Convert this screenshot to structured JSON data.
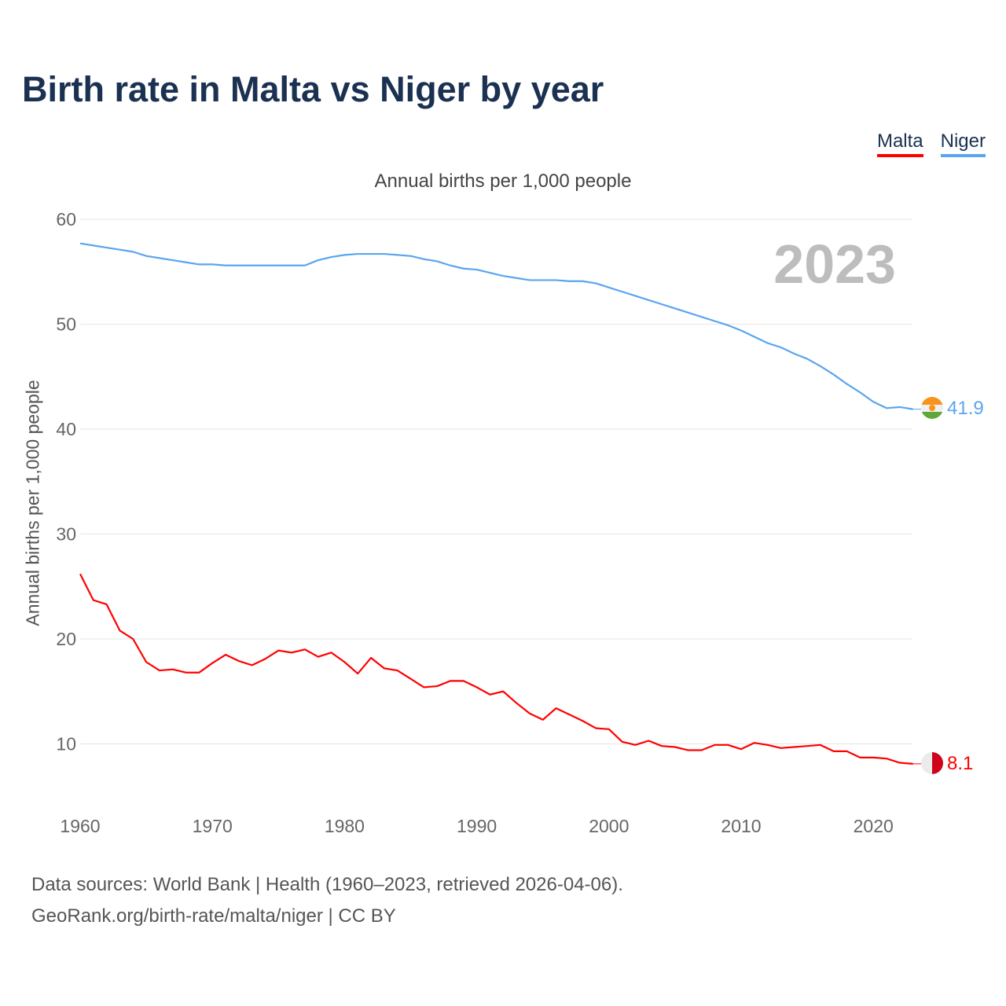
{
  "title": "Birth rate in Malta vs Niger by year",
  "legend": [
    {
      "label": "Malta",
      "color": "#ff0000"
    },
    {
      "label": "Niger",
      "color": "#5aa5ef"
    }
  ],
  "subtitle": "Annual births per 1,000 people",
  "year_label": "2023",
  "source_line1": "Data sources: World Bank | Health (1960–2023, retrieved 2026-04-06).",
  "source_line2": "GeoRank.org/birth-rate/malta/niger | CC BY",
  "chart_data": {
    "type": "line",
    "title": "Birth rate in Malta vs Niger by year",
    "ylabel": "Annual births per 1,000 people",
    "xlabel": "",
    "xlim": [
      1960,
      2023
    ],
    "ylim": [
      5,
      60
    ],
    "x_ticks": [
      1960,
      1970,
      1980,
      1990,
      2000,
      2010,
      2020
    ],
    "y_ticks": [
      10,
      20,
      30,
      40,
      50,
      60
    ],
    "grid": true,
    "legend_position": "top-right",
    "x": [
      1960,
      1961,
      1962,
      1963,
      1964,
      1965,
      1966,
      1967,
      1968,
      1969,
      1970,
      1971,
      1972,
      1973,
      1974,
      1975,
      1976,
      1977,
      1978,
      1979,
      1980,
      1981,
      1982,
      1983,
      1984,
      1985,
      1986,
      1987,
      1988,
      1989,
      1990,
      1991,
      1992,
      1993,
      1994,
      1995,
      1996,
      1997,
      1998,
      1999,
      2000,
      2001,
      2002,
      2003,
      2004,
      2005,
      2006,
      2007,
      2008,
      2009,
      2010,
      2011,
      2012,
      2013,
      2014,
      2015,
      2016,
      2017,
      2018,
      2019,
      2020,
      2021,
      2022,
      2023
    ],
    "series": [
      {
        "name": "Malta",
        "color": "#ff0000",
        "end_label": "8.1",
        "values": [
          26.2,
          23.7,
          23.3,
          20.8,
          20.0,
          17.8,
          17.0,
          17.1,
          16.8,
          16.8,
          17.7,
          18.5,
          17.9,
          17.5,
          18.1,
          18.9,
          18.7,
          19.0,
          18.3,
          18.7,
          17.8,
          16.7,
          18.2,
          17.2,
          17.0,
          16.2,
          15.4,
          15.5,
          16.0,
          16.0,
          15.4,
          14.7,
          15.0,
          13.9,
          12.9,
          12.3,
          13.4,
          12.8,
          12.2,
          11.5,
          11.4,
          10.2,
          9.9,
          10.3,
          9.8,
          9.7,
          9.4,
          9.4,
          9.9,
          9.9,
          9.5,
          10.1,
          9.9,
          9.6,
          9.7,
          9.8,
          9.9,
          9.3,
          9.3,
          8.7,
          8.7,
          8.6,
          8.2,
          8.1
        ]
      },
      {
        "name": "Niger",
        "color": "#5aa5ef",
        "end_label": "41.9",
        "values": [
          57.7,
          57.5,
          57.3,
          57.1,
          56.9,
          56.5,
          56.3,
          56.1,
          55.9,
          55.7,
          55.7,
          55.6,
          55.6,
          55.6,
          55.6,
          55.6,
          55.6,
          55.6,
          56.1,
          56.4,
          56.6,
          56.7,
          56.7,
          56.7,
          56.6,
          56.5,
          56.2,
          56.0,
          55.6,
          55.3,
          55.2,
          54.9,
          54.6,
          54.4,
          54.2,
          54.2,
          54.2,
          54.1,
          54.1,
          53.9,
          53.5,
          53.1,
          52.7,
          52.3,
          51.9,
          51.5,
          51.1,
          50.7,
          50.3,
          49.9,
          49.4,
          48.8,
          48.2,
          47.8,
          47.2,
          46.7,
          46.0,
          45.2,
          44.3,
          43.5,
          42.6,
          42.0,
          42.1,
          41.9
        ]
      }
    ]
  }
}
